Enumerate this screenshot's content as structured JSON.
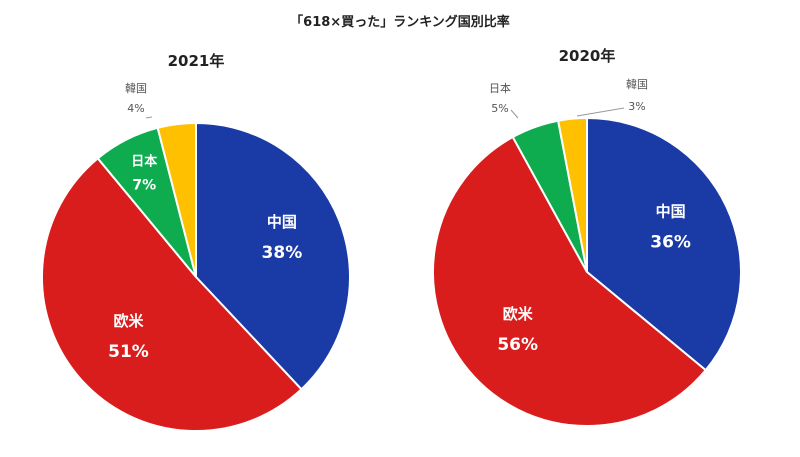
{
  "chart_data": {
    "title": "「618×買った」ランキング国別比率",
    "type": "pie",
    "colors": {
      "中国": "#1a3aa6",
      "欧米": "#d91c1c",
      "日本": "#0fac4f",
      "韓国": "#ffc000"
    },
    "charts": [
      {
        "title": "2021年",
        "slices": [
          {
            "label": "中国",
            "value": 38,
            "value_text": "38%",
            "label_position": "inside"
          },
          {
            "label": "欧米",
            "value": 51,
            "value_text": "51%",
            "label_position": "inside"
          },
          {
            "label": "日本",
            "value": 7,
            "value_text": "7%",
            "label_position": "inside"
          },
          {
            "label": "韓国",
            "value": 4,
            "value_text": "4%",
            "label_position": "outside"
          }
        ]
      },
      {
        "title": "2020年",
        "slices": [
          {
            "label": "中国",
            "value": 36,
            "value_text": "36%",
            "label_position": "inside"
          },
          {
            "label": "欧米",
            "value": 56,
            "value_text": "56%",
            "label_position": "inside"
          },
          {
            "label": "日本",
            "value": 5,
            "value_text": "5%",
            "label_position": "outside"
          },
          {
            "label": "韓国",
            "value": 3,
            "value_text": "3%",
            "label_position": "outside"
          }
        ]
      }
    ]
  }
}
